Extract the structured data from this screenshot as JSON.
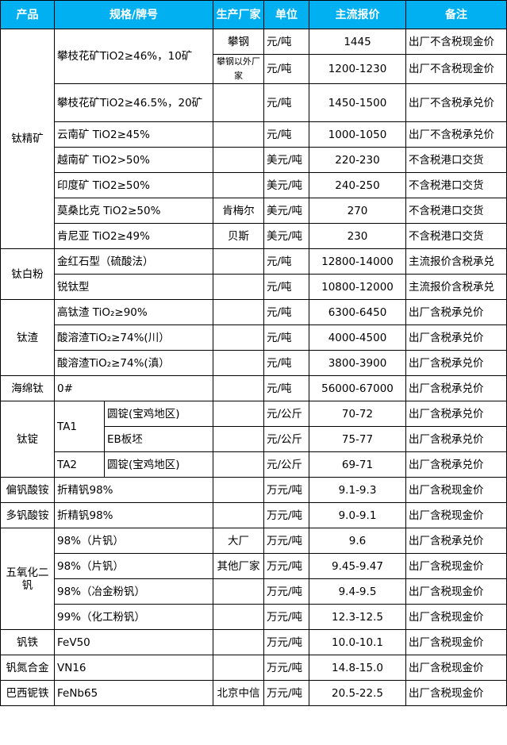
{
  "header": {
    "product": "产品",
    "spec": "规格/牌号",
    "manufacturer": "生产厂家",
    "unit": "单位",
    "price": "主流报价",
    "note": "备注"
  },
  "colors": {
    "header_bg": "#00b0f0",
    "header_text": "#ffffff",
    "border": "#000000"
  },
  "groups": [
    {
      "product": "钛精矿",
      "items": [
        {
          "spec": "攀枝花矿TiO2≥46%，10矿",
          "manufacturer": "攀钢",
          "unit": "元/吨",
          "price": "1445",
          "note": "出厂不含税现金价"
        },
        {
          "spec": null,
          "manufacturer": "攀钢以外厂家",
          "unit": "元/吨",
          "price": "1200-1230",
          "note": "出厂不含税现金价"
        },
        {
          "spec": "攀枝花矿TiO2≥46.5%，20矿",
          "manufacturer": "",
          "unit": "元/吨",
          "price": "1450-1500",
          "note": "出厂不含税承兑价"
        },
        {
          "spec": "云南矿 TiO2≥45%",
          "manufacturer": "",
          "unit": "元/吨",
          "price": "1000-1050",
          "note": "出厂不含税承兑价"
        },
        {
          "spec": "越南矿 TiO2>50%",
          "manufacturer": "",
          "unit": "美元/吨",
          "price": "220-230",
          "note": "不含税港口交货"
        },
        {
          "spec": "印度矿 TiO2≥50%",
          "manufacturer": "",
          "unit": "美元/吨",
          "price": "240-250",
          "note": "不含税港口交货"
        },
        {
          "spec": "莫桑比克 TiO2≥50%",
          "manufacturer": "肯梅尔",
          "unit": "美元/吨",
          "price": "270",
          "note": "不含税港口交货"
        },
        {
          "spec": "肯尼亚 TiO2≥49%",
          "manufacturer": "贝斯",
          "unit": "美元/吨",
          "price": "230",
          "note": "不含税港口交货"
        }
      ]
    },
    {
      "product": "钛白粉",
      "items": [
        {
          "spec": "金红石型（硫酸法）",
          "manufacturer": "",
          "unit": "元/吨",
          "price": "12800-14000",
          "note": "主流报价含税承兑"
        },
        {
          "spec": "锐钛型",
          "manufacturer": "",
          "unit": "元/吨",
          "price": "10800-12000",
          "note": "主流报价含税承兑"
        }
      ]
    },
    {
      "product": "钛渣",
      "items": [
        {
          "spec": "高钛渣 TiO₂≥90%",
          "manufacturer": "",
          "unit": "元/吨",
          "price": "6300-6450",
          "note": "出厂含税承兑价"
        },
        {
          "spec": "酸溶渣TiO₂≥74%(川）",
          "manufacturer": "",
          "unit": "元/吨",
          "price": "4000-4500",
          "note": "出厂含税承兑价"
        },
        {
          "spec": "酸溶渣TiO₂≥74%(滇）",
          "manufacturer": "",
          "unit": "元/吨",
          "price": "3800-3900",
          "note": "出厂含税承兑价"
        }
      ]
    },
    {
      "product": "海绵钛",
      "items": [
        {
          "spec": "0#",
          "manufacturer": "",
          "unit": "元/吨",
          "price": "56000-67000",
          "note": "出厂含税承兑价"
        }
      ]
    },
    {
      "product": "钛锭",
      "items": [
        {
          "grade": "TA1",
          "spec": "圆锭(宝鸡地区)",
          "manufacturer": "",
          "unit": "元/公斤",
          "price": "70-72",
          "note": "出厂含税承兑价"
        },
        {
          "grade": null,
          "spec": "EB板坯",
          "manufacturer": "",
          "unit": "元/公斤",
          "price": "75-77",
          "note": "出厂含税承兑价"
        },
        {
          "grade": "TA2",
          "spec": "圆锭(宝鸡地区)",
          "manufacturer": "",
          "unit": "元/公斤",
          "price": "69-71",
          "note": "出厂含税承兑价"
        }
      ]
    },
    {
      "product": "偏钒酸铵",
      "items": [
        {
          "spec": "折精钒98%",
          "manufacturer": "",
          "unit": "万元/吨",
          "price": "9.1-9.3",
          "note": "出厂含税现金价"
        }
      ]
    },
    {
      "product": "多钒酸铵",
      "items": [
        {
          "spec": "折精钒98%",
          "manufacturer": "",
          "unit": "万元/吨",
          "price": "9.0-9.1",
          "note": "出厂含税现金价"
        }
      ]
    },
    {
      "product": "五氧化二钒",
      "items": [
        {
          "spec": "98%（片钒）",
          "manufacturer": "大厂",
          "unit": "万元/吨",
          "price": "9.6",
          "note": "出厂含税承兑价"
        },
        {
          "spec": "98%（片钒）",
          "manufacturer": "其他厂家",
          "unit": "万元/吨",
          "price": "9.45-9.47",
          "note": "出厂含税现金价"
        },
        {
          "spec": "98%（冶金粉钒）",
          "manufacturer": "",
          "unit": "万元/吨",
          "price": "9.4-9.5",
          "note": "出厂含税现金价"
        },
        {
          "spec": "99%（化工粉钒）",
          "manufacturer": "",
          "unit": "万元/吨",
          "price": "12.3-12.5",
          "note": "出厂含税现金价"
        }
      ]
    },
    {
      "product": "钒铁",
      "items": [
        {
          "spec": "FeV50",
          "manufacturer": "",
          "unit": "万元/吨",
          "price": "10.0-10.1",
          "note": "出厂含税现金价"
        }
      ]
    },
    {
      "product": "钒氮合金",
      "items": [
        {
          "spec": "VN16",
          "manufacturer": "",
          "unit": "万元/吨",
          "price": "14.8-15.0",
          "note": "出厂含税现金价"
        }
      ]
    },
    {
      "product": "巴西铌铁",
      "items": [
        {
          "spec": "FeNb65",
          "manufacturer": "北京中信",
          "unit": "万元/吨",
          "price": "20.5-22.5",
          "note": "出厂含税现金价"
        }
      ]
    }
  ]
}
